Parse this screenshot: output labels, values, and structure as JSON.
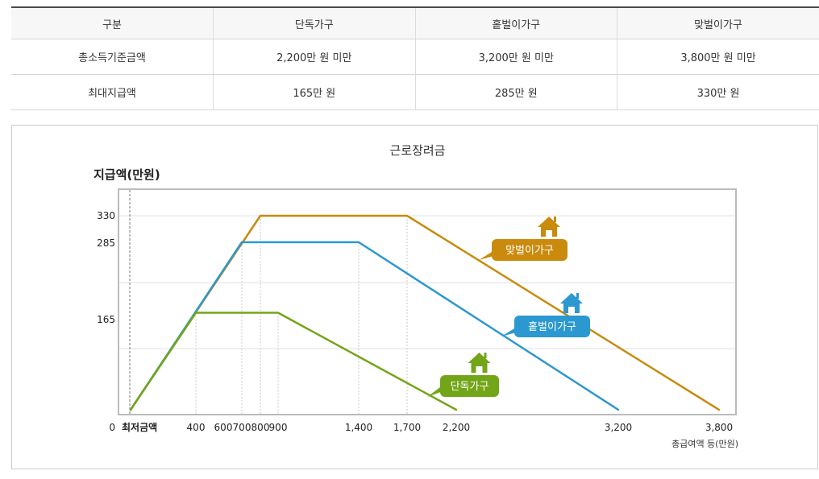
{
  "table": {
    "headers": [
      "구분",
      "단독가구",
      "홑벌이가구",
      "맞벌이가구"
    ],
    "rows": [
      [
        "총소득기준금액",
        "2,200만 원 미만",
        "3,200만 원 미만",
        "3,800만 원 미만"
      ],
      [
        "최대지급액",
        "165만 원",
        "285만 원",
        "330만 원"
      ]
    ]
  },
  "chart_data": {
    "type": "line",
    "title": "근로장려금",
    "ylabel": "지급액(만원)",
    "xlabel": "총급여액 등(만원)",
    "x_tick_labels": [
      "최저금액",
      "400",
      "600",
      "700",
      "800",
      "900",
      "1,400",
      "1,700",
      "2,200",
      "3,200",
      "3,800"
    ],
    "y_tick_labels": [
      "0",
      "165",
      "285",
      "330"
    ],
    "ylim": [
      0,
      330
    ],
    "grid": true,
    "series": [
      {
        "name": "맞벌이가구",
        "color": "#c98a0d",
        "x": [
          0,
          800,
          1700,
          3800
        ],
        "y": [
          0,
          330,
          330,
          0
        ]
      },
      {
        "name": "홑벌이가구",
        "color": "#2b98cf",
        "x": [
          0,
          700,
          1400,
          3200
        ],
        "y": [
          0,
          285,
          285,
          0
        ]
      },
      {
        "name": "단독가구",
        "color": "#72a517",
        "x": [
          0,
          400,
          900,
          2200
        ],
        "y": [
          0,
          165,
          165,
          0
        ]
      }
    ]
  }
}
